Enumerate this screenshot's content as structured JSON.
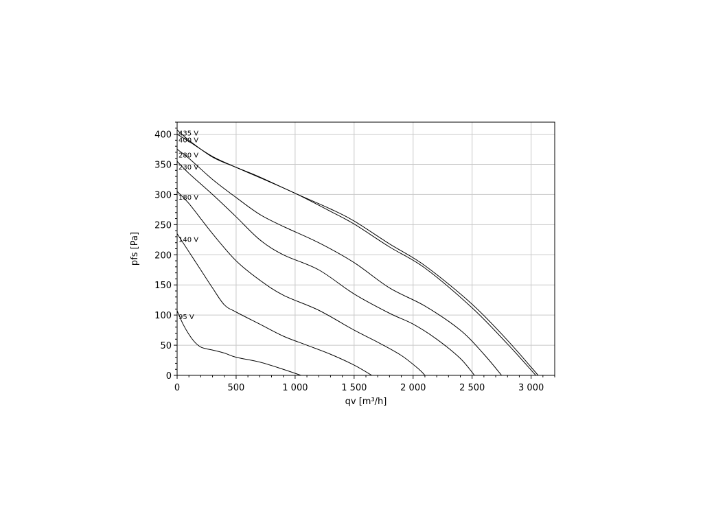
{
  "chart_data": {
    "type": "line",
    "title": "",
    "xlabel": "qv [m³/h]",
    "ylabel": "pfs [Pa]",
    "xlim": [
      0,
      3200
    ],
    "ylim": [
      0,
      420
    ],
    "x_ticks": [
      0,
      500,
      1000,
      1500,
      2000,
      2500,
      3000
    ],
    "x_tick_labels": [
      "0",
      "500",
      "1 000",
      "1 500",
      "2 000",
      "2 500",
      "3 000"
    ],
    "y_ticks": [
      0,
      50,
      100,
      150,
      200,
      250,
      300,
      350,
      400
    ],
    "y_tick_labels": [
      "0",
      "50",
      "100",
      "150",
      "200",
      "250",
      "300",
      "350",
      "400"
    ],
    "grid": true,
    "series": [
      {
        "name": "435 V",
        "x": [
          0,
          100,
          300,
          500,
          700,
          1000,
          1300,
          1500,
          1800,
          2100,
          2500,
          2800,
          3060
        ],
        "y": [
          407,
          390,
          362,
          345,
          329,
          302,
          276,
          256,
          218,
          182,
          118,
          58,
          0
        ]
      },
      {
        "name": "400 V",
        "x": [
          0,
          100,
          300,
          500,
          700,
          1000,
          1300,
          1500,
          1800,
          2100,
          2500,
          2800,
          3040
        ],
        "y": [
          400,
          388,
          363,
          345,
          328,
          302,
          272,
          251,
          213,
          178,
          112,
          52,
          0
        ]
      },
      {
        "name": "280 V",
        "x": [
          0,
          100,
          300,
          500,
          700,
          900,
          1200,
          1500,
          1800,
          2100,
          2400,
          2600,
          2750
        ],
        "y": [
          375,
          360,
          325,
          295,
          267,
          247,
          220,
          187,
          145,
          115,
          75,
          35,
          0
        ]
      },
      {
        "name": "230 V",
        "x": [
          0,
          100,
          300,
          500,
          700,
          900,
          1200,
          1500,
          1800,
          2000,
          2200,
          2400,
          2520
        ],
        "y": [
          355,
          335,
          300,
          263,
          225,
          200,
          175,
          135,
          103,
          85,
          60,
          28,
          0
        ]
      },
      {
        "name": "180 V",
        "x": [
          0,
          100,
          300,
          500,
          700,
          900,
          1200,
          1500,
          1700,
          1900,
          2050,
          2100
        ],
        "y": [
          305,
          285,
          235,
          190,
          158,
          133,
          108,
          75,
          55,
          33,
          10,
          0
        ]
      },
      {
        "name": "140 V",
        "x": [
          0,
          100,
          200,
          300,
          400,
          500,
          700,
          900,
          1100,
          1300,
          1500,
          1650
        ],
        "y": [
          235,
          205,
          175,
          145,
          117,
          105,
          85,
          65,
          50,
          35,
          17,
          0
        ]
      },
      {
        "name": "95 V",
        "x": [
          0,
          50,
          100,
          150,
          200,
          250,
          300,
          400,
          500,
          700,
          900,
          1050
        ],
        "y": [
          107,
          85,
          68,
          55,
          47,
          44,
          42,
          37,
          30,
          22,
          10,
          0
        ]
      }
    ]
  }
}
